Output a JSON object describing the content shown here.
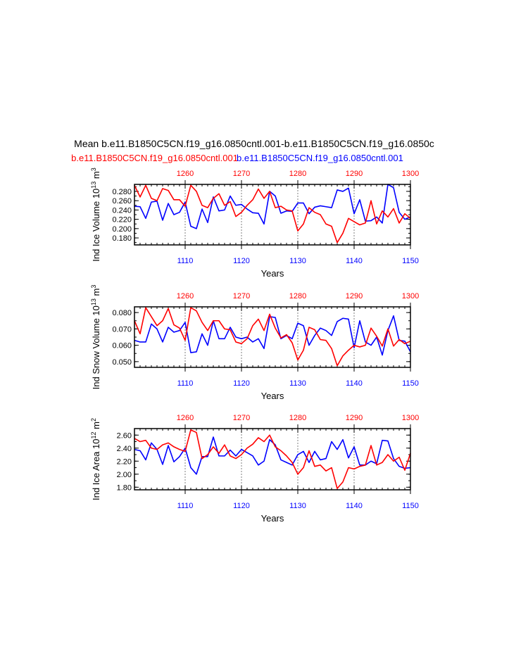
{
  "title": "Mean b.e11.B1850C5CN.f19_g16.0850cntl.001-b.e11.B1850C5CN.f19_g16.0850c",
  "subtitle_left": "b.e11.B1850C5CN.f19_g16.0850cntl.001",
  "subtitle_right": "b.e11.B1850C5CN.f19_g16.0850cntl.001",
  "colors": {
    "case1": "#ff0000",
    "case2": "#0000ff",
    "axis": "#000000",
    "grid": "#7f7f7f"
  },
  "chart_data": [
    {
      "type": "line",
      "ylabel": "Ind Ice Volume 10",
      "ylabel_exp": "13",
      "ylabel_unit": "m",
      "ylabel_unit_exp": "3",
      "xlabel": "Years",
      "ylim": [
        0.165,
        0.295
      ],
      "yticks": [
        0.18,
        0.2,
        0.22,
        0.24,
        0.26,
        0.28
      ],
      "ytick_labels": [
        "0.180",
        "0.200",
        "0.220",
        "0.240",
        "0.260",
        "0.280"
      ],
      "x_bottom": {
        "range": [
          1101,
          1150
        ],
        "ticks": [
          1110,
          1120,
          1130,
          1140,
          1150
        ]
      },
      "x_top": {
        "range": [
          1251,
          1300
        ],
        "ticks": [
          1260,
          1270,
          1280,
          1290,
          1300
        ]
      },
      "series": [
        {
          "axis": "bottom",
          "color": "#0000ff",
          "values": [
            0.248,
            0.247,
            0.222,
            0.257,
            0.259,
            0.218,
            0.254,
            0.23,
            0.235,
            0.257,
            0.205,
            0.2,
            0.242,
            0.213,
            0.268,
            0.238,
            0.24,
            0.27,
            0.25,
            0.252,
            0.242,
            0.234,
            0.233,
            0.21,
            0.28,
            0.27,
            0.233,
            0.238,
            0.237,
            0.255,
            0.255,
            0.232,
            0.246,
            0.249,
            0.247,
            0.245,
            0.283,
            0.28,
            0.287,
            0.232,
            0.262,
            0.216,
            0.217,
            0.225,
            0.212,
            0.295,
            0.288,
            0.235,
            0.22,
            0.225
          ]
        },
        {
          "axis": "top",
          "color": "#ff0000",
          "values": [
            0.293,
            0.268,
            0.293,
            0.265,
            0.26,
            0.286,
            0.282,
            0.262,
            0.262,
            0.248,
            0.293,
            0.28,
            0.25,
            0.245,
            0.265,
            0.275,
            0.25,
            0.258,
            0.226,
            0.235,
            0.25,
            0.262,
            0.285,
            0.265,
            0.28,
            0.245,
            0.248,
            0.24,
            0.238,
            0.195,
            0.21,
            0.245,
            0.235,
            0.23,
            0.21,
            0.205,
            0.17,
            0.19,
            0.222,
            0.215,
            0.208,
            0.212,
            0.26,
            0.21,
            0.238,
            0.225,
            0.243,
            0.212,
            0.232,
            0.222
          ]
        }
      ]
    },
    {
      "type": "line",
      "ylabel": "Ind Snow Volume 10",
      "ylabel_exp": "13",
      "ylabel_unit": "m",
      "ylabel_unit_exp": "3",
      "xlabel": "Years",
      "ylim": [
        0.0465,
        0.0835
      ],
      "yticks": [
        0.05,
        0.06,
        0.07,
        0.08
      ],
      "ytick_labels": [
        "0.050",
        "0.060",
        "0.070",
        "0.080"
      ],
      "x_bottom": {
        "range": [
          1101,
          1150
        ],
        "ticks": [
          1110,
          1120,
          1130,
          1140,
          1150
        ]
      },
      "x_top": {
        "range": [
          1251,
          1300
        ],
        "ticks": [
          1260,
          1270,
          1280,
          1290,
          1300
        ]
      },
      "series": [
        {
          "axis": "bottom",
          "color": "#0000ff",
          "values": [
            0.063,
            0.062,
            0.062,
            0.073,
            0.07,
            0.062,
            0.071,
            0.068,
            0.069,
            0.074,
            0.0555,
            0.056,
            0.067,
            0.06,
            0.075,
            0.064,
            0.064,
            0.071,
            0.065,
            0.064,
            0.065,
            0.062,
            0.064,
            0.058,
            0.0775,
            0.077,
            0.064,
            0.066,
            0.064,
            0.0735,
            0.072,
            0.06,
            0.066,
            0.0705,
            0.069,
            0.066,
            0.0745,
            0.0765,
            0.076,
            0.0585,
            0.075,
            0.062,
            0.06,
            0.065,
            0.054,
            0.069,
            0.078,
            0.063,
            0.0625,
            0.056
          ]
        },
        {
          "axis": "top",
          "color": "#ff0000",
          "values": [
            0.075,
            0.067,
            0.083,
            0.0775,
            0.072,
            0.075,
            0.0825,
            0.0725,
            0.0705,
            0.063,
            0.083,
            0.081,
            0.074,
            0.069,
            0.075,
            0.075,
            0.07,
            0.0695,
            0.062,
            0.061,
            0.064,
            0.072,
            0.076,
            0.069,
            0.079,
            0.0705,
            0.0645,
            0.0665,
            0.0615,
            0.051,
            0.057,
            0.071,
            0.0695,
            0.0635,
            0.063,
            0.058,
            0.0475,
            0.0535,
            0.057,
            0.06,
            0.059,
            0.06,
            0.0705,
            0.0655,
            0.0595,
            0.07,
            0.0595,
            0.0635,
            0.061,
            0.0625
          ]
        }
      ]
    },
    {
      "type": "line",
      "ylabel": "Ind Ice Area 10",
      "ylabel_exp": "12",
      "ylabel_unit": "m",
      "ylabel_unit_exp": "2",
      "xlabel": "Years",
      "ylim": [
        1.76,
        2.7
      ],
      "yticks": [
        1.8,
        2.0,
        2.2,
        2.4,
        2.6
      ],
      "ytick_labels": [
        "1.80",
        "2.00",
        "2.20",
        "2.40",
        "2.60"
      ],
      "x_bottom": {
        "range": [
          1101,
          1150
        ],
        "ticks": [
          1110,
          1120,
          1130,
          1140,
          1150
        ]
      },
      "x_top": {
        "range": [
          1251,
          1300
        ],
        "ticks": [
          1260,
          1270,
          1280,
          1290,
          1300
        ]
      },
      "series": [
        {
          "axis": "bottom",
          "color": "#0000ff",
          "values": [
            2.38,
            2.36,
            2.22,
            2.48,
            2.38,
            2.15,
            2.44,
            2.19,
            2.27,
            2.4,
            2.1,
            2.0,
            2.27,
            2.27,
            2.57,
            2.28,
            2.28,
            2.37,
            2.28,
            2.38,
            2.33,
            2.28,
            2.14,
            2.2,
            2.53,
            2.45,
            2.22,
            2.18,
            2.14,
            2.3,
            2.35,
            2.18,
            2.35,
            2.22,
            2.24,
            2.5,
            2.38,
            2.53,
            2.25,
            2.42,
            2.14,
            2.14,
            2.2,
            2.16,
            2.52,
            2.51,
            2.24,
            2.12,
            2.09,
            2.1
          ]
        },
        {
          "axis": "top",
          "color": "#ff0000",
          "values": [
            2.55,
            2.5,
            2.52,
            2.4,
            2.38,
            2.45,
            2.48,
            2.42,
            2.38,
            2.35,
            2.68,
            2.64,
            2.24,
            2.3,
            2.42,
            2.32,
            2.45,
            2.28,
            2.24,
            2.3,
            2.4,
            2.46,
            2.56,
            2.5,
            2.6,
            2.42,
            2.36,
            2.28,
            2.18,
            2.0,
            2.1,
            2.36,
            2.12,
            2.14,
            2.05,
            2.1,
            1.78,
            1.88,
            2.1,
            2.08,
            2.12,
            2.14,
            2.44,
            2.14,
            2.18,
            2.3,
            2.2,
            2.26,
            2.06,
            2.32
          ]
        }
      ]
    }
  ]
}
